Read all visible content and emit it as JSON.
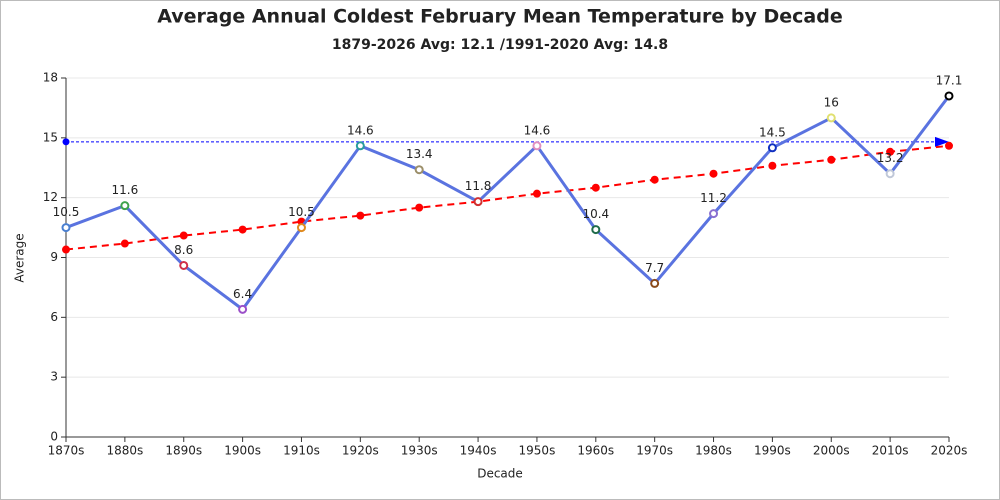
{
  "chart_data": {
    "type": "line",
    "title": "Average Annual Coldest February Mean Temperature by Decade",
    "subtitle": "1879-2026 Avg: 12.1 /1991-2020 Avg: 14.8",
    "x_label": "Decade",
    "y_label": "Average",
    "categories": [
      "1870s",
      "1880s",
      "1890s",
      "1900s",
      "1910s",
      "1920s",
      "1930s",
      "1940s",
      "1950s",
      "1960s",
      "1970s",
      "1980s",
      "1990s",
      "2000s",
      "2010s",
      "2020s"
    ],
    "series": [
      {
        "name": "Average",
        "color": "#5a73e0",
        "data_labels": true,
        "values": [
          10.5,
          11.6,
          8.6,
          6.4,
          10.5,
          14.6,
          13.4,
          11.8,
          14.6,
          10.4,
          7.7,
          11.2,
          14.5,
          16,
          13.2,
          17.1
        ],
        "point_colors": [
          "#4a7fd0",
          "#3fa34d",
          "#d0304a",
          "#9b4fc8",
          "#e08a1e",
          "#2a9d9d",
          "#9c8f6a",
          "#d03030",
          "#e08fc0",
          "#1f6b4a",
          "#8a4a1a",
          "#8a6fd0",
          "#1030c0",
          "#e0e070",
          "#c0c8d8",
          "#000000"
        ]
      },
      {
        "name": "Trend",
        "color": "#ff0000",
        "dashed": true,
        "values": [
          9.4,
          9.7,
          10.1,
          10.4,
          10.8,
          11.1,
          11.5,
          11.8,
          12.2,
          12.5,
          12.9,
          13.2,
          13.6,
          13.9,
          14.3,
          14.6
        ]
      }
    ],
    "reference_line": {
      "value": 14.8,
      "color": "#0000ff"
    },
    "ylim": [
      0,
      18
    ],
    "yticks": [
      0,
      3,
      6,
      9,
      12,
      15,
      18
    ],
    "grid": true
  }
}
